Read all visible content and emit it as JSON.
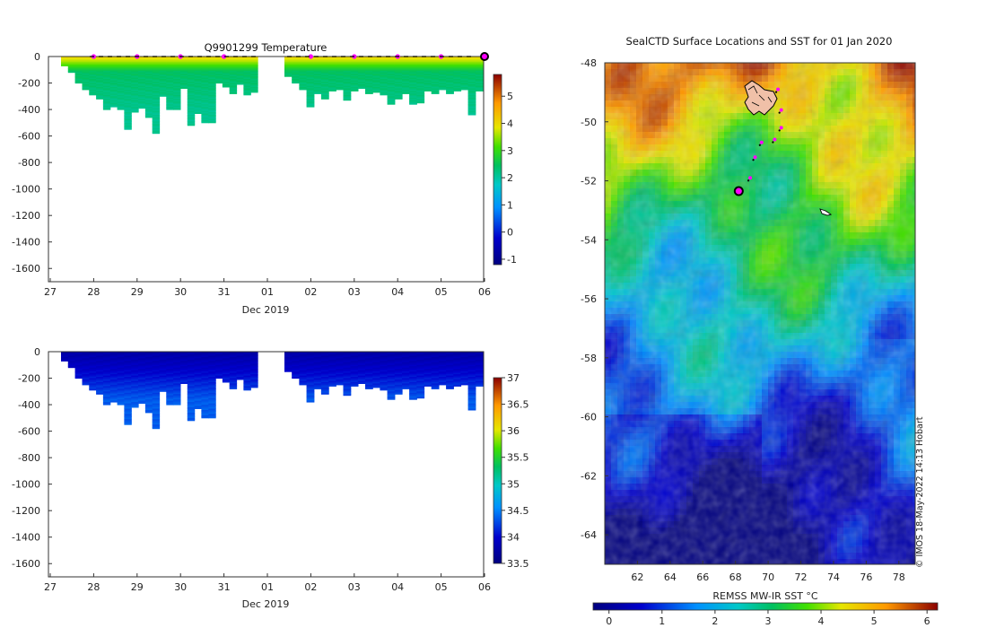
{
  "chart_data": [
    {
      "type": "heatmap",
      "title": "Q9901299  Temperature",
      "xlabel": "Dec 2019",
      "x_tick_labels": [
        "27",
        "28",
        "29",
        "30",
        "31",
        "01",
        "02",
        "03",
        "04",
        "05",
        "06"
      ],
      "y_tick_labels": [
        "0",
        "-200",
        "-400",
        "-600",
        "-800",
        "-1000",
        "-1200",
        "-1400",
        "-1600"
      ],
      "ylim": [
        -1700,
        0
      ],
      "colorbar": {
        "ticks": [
          "-1",
          "0",
          "1",
          "2",
          "3",
          "4",
          "5"
        ],
        "range": [
          -1.2,
          5.8
        ]
      },
      "surface_layer_value": 4.0,
      "profile_max_depths": [
        70,
        120,
        200,
        250,
        290,
        320,
        400,
        380,
        400,
        550,
        420,
        390,
        460,
        580,
        300,
        400,
        400,
        240,
        520,
        430,
        500,
        500,
        200,
        230,
        280,
        210,
        290,
        270
      ],
      "profile_max_depths_after_gap": [
        150,
        200,
        250,
        380,
        280,
        320,
        260,
        250,
        330,
        260,
        240,
        280,
        270,
        290,
        360,
        320,
        280,
        360,
        350,
        260,
        280,
        250,
        280,
        260,
        250,
        440,
        260
      ]
    },
    {
      "type": "heatmap",
      "title": "",
      "xlabel": "Dec 2019",
      "x_tick_labels": [
        "27",
        "28",
        "29",
        "30",
        "31",
        "01",
        "02",
        "03",
        "04",
        "05",
        "06"
      ],
      "y_tick_labels": [
        "0",
        "-200",
        "-400",
        "-600",
        "-800",
        "-1000",
        "-1200",
        "-1400",
        "-1600"
      ],
      "ylim": [
        -1700,
        0
      ],
      "colorbar": {
        "ticks": [
          "33.5",
          "34",
          "34.5",
          "35",
          "35.5",
          "36",
          "36.5",
          "37"
        ],
        "range": [
          33.5,
          37
        ]
      }
    },
    {
      "type": "heatmap",
      "title": "SealCTD Surface Locations and SST for 01 Jan 2020",
      "x_tick_labels": [
        "62",
        "64",
        "66",
        "68",
        "70",
        "72",
        "74",
        "76",
        "78"
      ],
      "y_tick_labels": [
        "-48",
        "-50",
        "-52",
        "-54",
        "-56",
        "-58",
        "-60",
        "-62",
        "-64"
      ],
      "xlim": [
        60,
        79
      ],
      "ylim": [
        -65,
        -48
      ],
      "colorbar": {
        "label": "REMSS MW-IR SST °C",
        "ticks": [
          "0",
          "1",
          "2",
          "3",
          "4",
          "5",
          "6"
        ],
        "range": [
          -0.3,
          6.2
        ]
      },
      "track": [
        {
          "lon": 68.2,
          "lat": -52.35
        },
        {
          "lon": 68.9,
          "lat": -51.9
        },
        {
          "lon": 69.2,
          "lat": -51.2
        },
        {
          "lon": 69.6,
          "lat": -50.7
        },
        {
          "lon": 70.4,
          "lat": -50.6
        },
        {
          "lon": 70.8,
          "lat": -50.2
        },
        {
          "lon": 70.8,
          "lat": -49.6
        },
        {
          "lon": 70.6,
          "lat": -48.9
        }
      ]
    }
  ],
  "credit": "© IMOS 18-May-2022 14:13 Hobart"
}
